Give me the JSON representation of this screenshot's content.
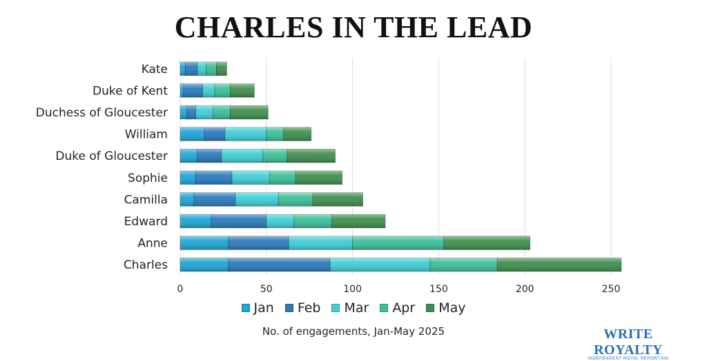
{
  "chart_data": {
    "type": "bar",
    "orientation": "horizontal",
    "stacked": true,
    "title": "CHARLES IN THE LEAD",
    "xlabel": "No. of engagements, Jan-May 2025",
    "ylabel": "",
    "xlim": [
      0,
      250
    ],
    "xticks": [
      0,
      50,
      100,
      150,
      200,
      250
    ],
    "grid": true,
    "legend_position": "bottom",
    "categories": [
      "Kate",
      "Duke of Kent",
      "Duchess of Gloucester",
      "William",
      "Duke of Gloucester",
      "Sophie",
      "Camilla",
      "Edward",
      "Anne",
      "Charles"
    ],
    "series": [
      {
        "name": "Jan",
        "color": "#1fa7d6",
        "values": [
          3,
          2,
          4,
          14,
          10,
          9,
          8,
          18,
          28,
          28
        ]
      },
      {
        "name": "Feb",
        "color": "#2b7bbd",
        "values": [
          7,
          11,
          5,
          12,
          14,
          21,
          24,
          32,
          35,
          59
        ]
      },
      {
        "name": "Mar",
        "color": "#3fd0d6",
        "values": [
          5,
          7,
          10,
          24,
          24,
          22,
          25,
          16,
          37,
          58
        ]
      },
      {
        "name": "Apr",
        "color": "#3dbf9a",
        "values": [
          6,
          9,
          10,
          10,
          14,
          15,
          20,
          22,
          53,
          39
        ]
      },
      {
        "name": "May",
        "color": "#3f8f4e",
        "values": [
          6,
          14,
          22,
          16,
          28,
          27,
          29,
          31,
          50,
          72
        ]
      }
    ]
  },
  "logo": {
    "main": "WRITE ROYALTY",
    "sub": "INDEPENDENT ROYAL REPORTING"
  }
}
